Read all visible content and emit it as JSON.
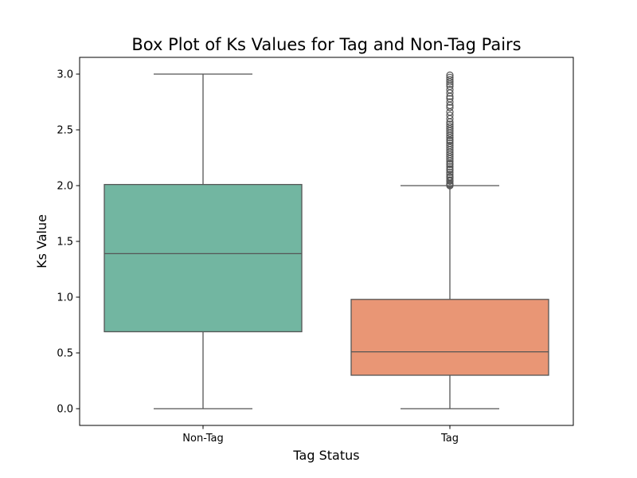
{
  "chart_data": {
    "type": "box",
    "title": "Box Plot of Ks Values for Tag and Non-Tag Pairs",
    "xlabel": "Tag Status",
    "ylabel": "Ks Value",
    "ylim": [
      -0.15,
      3.15
    ],
    "yticks": [
      0.0,
      0.5,
      1.0,
      1.5,
      2.0,
      2.5,
      3.0
    ],
    "ytick_labels": [
      "0.0",
      "0.5",
      "1.0",
      "1.5",
      "2.0",
      "2.5",
      "3.0"
    ],
    "categories": [
      "Non-Tag",
      "Tag"
    ],
    "grid": false,
    "legend": "none",
    "boxes": [
      {
        "category": "Non-Tag",
        "color": "#72b6a1",
        "whisker_low": 0.0,
        "q1": 0.69,
        "median": 1.39,
        "q3": 2.01,
        "whisker_high": 3.0,
        "outliers": []
      },
      {
        "category": "Tag",
        "color": "#e99675",
        "whisker_low": 0.0,
        "q1": 0.3,
        "median": 0.51,
        "q3": 0.98,
        "whisker_high": 2.0,
        "outliers": [
          2.0,
          2.01,
          2.02,
          2.04,
          2.05,
          2.07,
          2.08,
          2.1,
          2.12,
          2.14,
          2.15,
          2.17,
          2.19,
          2.2,
          2.22,
          2.24,
          2.26,
          2.28,
          2.3,
          2.32,
          2.34,
          2.36,
          2.38,
          2.4,
          2.41,
          2.43,
          2.45,
          2.47,
          2.49,
          2.51,
          2.53,
          2.55,
          2.57,
          2.6,
          2.63,
          2.66,
          2.7,
          2.72,
          2.75,
          2.78,
          2.8,
          2.83,
          2.86,
          2.89,
          2.91,
          2.93,
          2.95,
          2.97,
          2.99
        ]
      }
    ],
    "line_color": "#555555",
    "spine_color": "#000000"
  }
}
